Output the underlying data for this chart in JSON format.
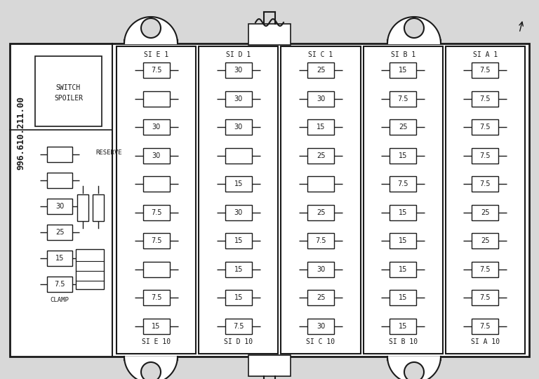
{
  "bg_color": "#d8d8d8",
  "panel_color": "#ffffff",
  "border_color": "#1a1a1a",
  "title_vertical": "996.610.211.00",
  "switch_spoiler_line1": "SWITCH",
  "switch_spoiler_line2": "SPOILER",
  "col_labels_top": [
    "SI E 1",
    "SI D 1",
    "SI C 1",
    "SI B 1",
    "SI A 1"
  ],
  "col_labels_bot": [
    "SI E 10",
    "SI D 10",
    "SI C 10",
    "SI B 10",
    "SI A 10"
  ],
  "fuses_E": [
    "7.5",
    "",
    "30",
    "30",
    "",
    "7.5",
    "7.5",
    "",
    "7.5",
    "15"
  ],
  "fuses_D": [
    "30",
    "30",
    "30",
    "",
    "15",
    "30",
    "15",
    "15",
    "15",
    "7.5"
  ],
  "fuses_C": [
    "25",
    "30",
    "15",
    "25",
    "",
    "25",
    "7.5",
    "30",
    "25",
    "30"
  ],
  "fuses_B": [
    "15",
    "7.5",
    "25",
    "15",
    "7.5",
    "15",
    "15",
    "15",
    "15",
    "15"
  ],
  "fuses_A": [
    "7.5",
    "7.5",
    "7.5",
    "7.5",
    "7.5",
    "25",
    "25",
    "7.5",
    "7.5",
    "7.5"
  ],
  "left_fuses": [
    "",
    "",
    "30",
    "25",
    "15",
    "7.5"
  ],
  "note": "left fuses: reserve(blank), blank, 30, 25, 15, 7.5"
}
